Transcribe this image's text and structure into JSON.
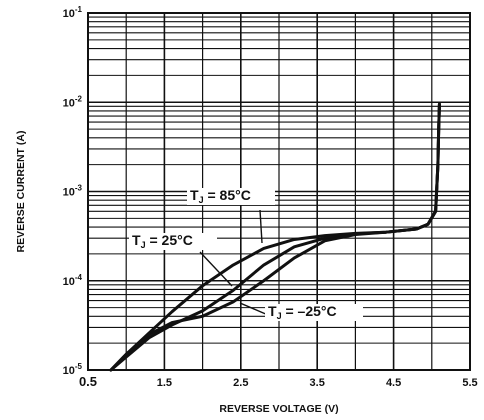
{
  "chart_data": {
    "type": "line",
    "xlabel": "REVERSE VOLTAGE (V)",
    "ylabel": "REVERSE CURRENT (A)",
    "x_scale": "linear",
    "y_scale": "log",
    "xlim": [
      0.5,
      5.5
    ],
    "ylim": [
      1e-05,
      0.1
    ],
    "x_ticks": [
      {
        "value": 0.5,
        "label": "0.5"
      },
      {
        "value": 1.5,
        "label": "1.5"
      },
      {
        "value": 2.5,
        "label": "2.5"
      },
      {
        "value": 3.5,
        "label": "3.5"
      },
      {
        "value": 4.5,
        "label": "4.5"
      },
      {
        "value": 5.5,
        "label": "5.5"
      }
    ],
    "y_ticks": [
      {
        "value": 1e-05,
        "base": "10",
        "exp": "-5"
      },
      {
        "value": 0.0001,
        "base": "10",
        "exp": "-4"
      },
      {
        "value": 0.001,
        "base": "10",
        "exp": "-3"
      },
      {
        "value": 0.01,
        "base": "10",
        "exp": "-2"
      },
      {
        "value": 0.1,
        "base": "10",
        "exp": "-1"
      }
    ],
    "grid": true,
    "series": [
      {
        "name": "T_J = 85°C",
        "label_main": "T",
        "label_sub": "J",
        "label_rest": " = 85°C",
        "x": [
          0.8,
          1.0,
          1.3,
          1.6,
          2.0,
          2.4,
          2.8,
          3.2,
          3.6,
          4.0,
          4.4,
          4.8,
          4.95,
          5.05,
          5.08,
          5.09,
          5.1
        ],
        "y": [
          1e-05,
          1.5e-05,
          2.6e-05,
          4.5e-05,
          8.8e-05,
          0.00015,
          0.00023,
          0.00029,
          0.00032,
          0.00034,
          0.00035,
          0.00038,
          0.00043,
          0.0006,
          0.002,
          0.005,
          0.0095
        ]
      },
      {
        "name": "T_J = 25°C",
        "label_main": "T",
        "label_sub": "J",
        "label_rest": " = 25°C",
        "x": [
          0.8,
          1.0,
          1.3,
          1.6,
          2.0,
          2.4,
          2.8,
          3.2,
          3.6,
          4.0,
          4.4,
          4.8,
          4.95,
          5.05,
          5.08,
          5.09,
          5.1
        ],
        "y": [
          1e-05,
          1.4e-05,
          2.3e-05,
          3.2e-05,
          4.6e-05,
          7.8e-05,
          0.00015,
          0.00024,
          0.0003,
          0.000335,
          0.00035,
          0.00038,
          0.00043,
          0.0006,
          0.002,
          0.005,
          0.0095
        ]
      },
      {
        "name": "T_J = -25°C",
        "label_main": "T",
        "label_sub": "J",
        "label_rest": " = –25°C",
        "x": [
          0.8,
          1.0,
          1.3,
          1.6,
          2.0,
          2.4,
          2.8,
          3.2,
          3.6,
          4.0,
          4.4,
          4.8,
          4.95,
          5.05,
          5.08,
          5.09,
          5.1
        ],
        "y": [
          1e-05,
          1.5e-05,
          2.5e-05,
          3.4e-05,
          4e-05,
          5.8e-05,
          0.0001,
          0.00018,
          0.00028,
          0.00033,
          0.00035,
          0.00038,
          0.00043,
          0.0006,
          0.002,
          0.005,
          0.0095
        ]
      }
    ]
  }
}
